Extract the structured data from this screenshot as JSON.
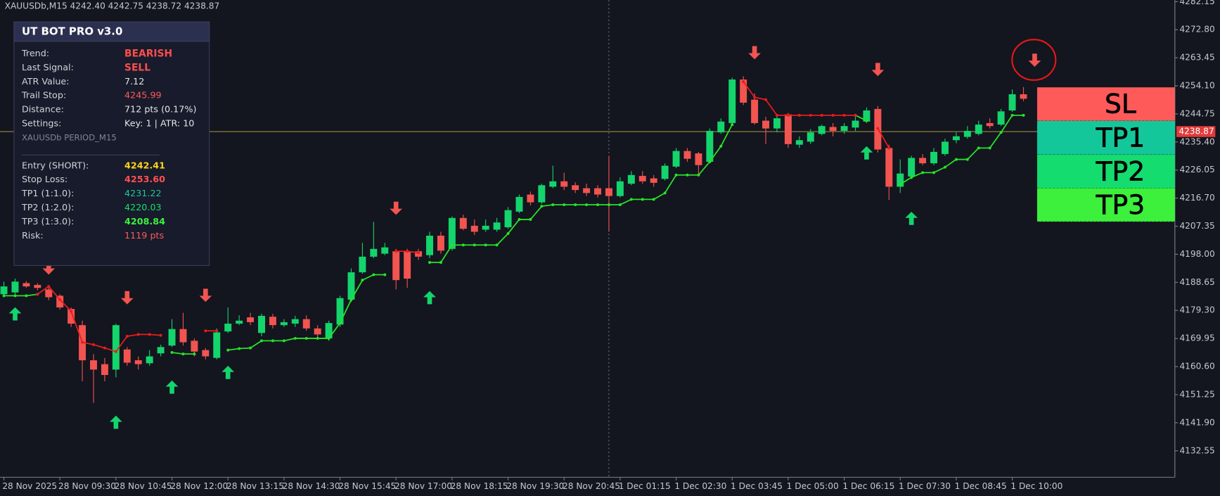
{
  "chart_data": {
    "type": "candlestick",
    "symbol_header": "XAUUSDb,M15  4242.40 4242.75 4238.72 4238.87",
    "categories": [
      "28 Nov 2025",
      null,
      null,
      null,
      null,
      "28 Nov 09:30",
      null,
      null,
      null,
      null,
      "28 Nov 10:45",
      null,
      null,
      null,
      null,
      "28 Nov 12:00",
      null,
      null,
      null,
      null,
      "28 Nov 13:15",
      null,
      null,
      null,
      null,
      "28 Nov 14:30",
      null,
      null,
      null,
      null,
      "28 Nov 15:45",
      null,
      null,
      null,
      null,
      "28 Nov 17:00",
      null,
      null,
      null,
      null,
      "28 Nov 18:15",
      null,
      null,
      null,
      null,
      "28 Nov 19:30",
      null,
      null,
      null,
      null,
      "28 Nov 20:45",
      null,
      null,
      null,
      null,
      "1 Dec 01:15",
      null,
      null,
      null,
      null,
      "1 Dec 02:30",
      null,
      null,
      null,
      null,
      "1 Dec 03:45",
      null,
      null,
      null,
      null,
      "1 Dec 05:00",
      null,
      null,
      null,
      null,
      "1 Dec 06:15",
      null,
      null,
      null,
      null,
      "1 Dec 07:30",
      null,
      null,
      null,
      null,
      "1 Dec 08:45",
      null,
      null,
      null,
      null,
      "1 Dec 10:00",
      null
    ],
    "open": [
      4184.7,
      4185.3,
      4188.4,
      4187.8,
      4186.3,
      4184.2,
      4179.8,
      4174.4,
      4162.7,
      4161.4,
      4159.6,
      4166.3,
      4162.7,
      4161.7,
      4165.0,
      4167.6,
      4173.1,
      4169.2,
      4166.1,
      4163.5,
      4172.3,
      4174.9,
      4177.0,
      4171.8,
      4177.2,
      4174.4,
      4174.9,
      4176.4,
      4173.3,
      4170.0,
      4174.6,
      4182.9,
      4192.0,
      4197.2,
      4198.2,
      4199.0,
      4199.0,
      4199.0,
      4197.7,
      4204.2,
      4199.8,
      4210.1,
      4207.5,
      4206.2,
      4206.2,
      4207.0,
      4212.2,
      4217.9,
      4215.3,
      4220.5,
      4222.3,
      4221.0,
      4220.0,
      4220.0,
      4220.0,
      4217.4,
      4221.5,
      4224.1,
      4223.3,
      4223.1,
      4227.2,
      4232.4,
      4231.6,
      4228.8,
      4238.6,
      4241.7,
      4256.2,
      4249.5,
      4242.5,
      4239.9,
      4244.6,
      4234.5,
      4235.5,
      4238.1,
      4240.4,
      4239.1,
      4240.2,
      4242.2,
      4246.4,
      4233.4,
      4220.5,
      4223.9,
      4230.1,
      4228.3,
      4231.4,
      4236.0,
      4237.1,
      4238.1,
      4241.7,
      4241.2,
      4245.9,
      4251.3
    ],
    "high": [
      4188.9,
      4189.9,
      4189.1,
      4188.4,
      4187.3,
      4184.7,
      4180.3,
      4175.9,
      4164.8,
      4163.5,
      4174.9,
      4167.1,
      4164.0,
      4166.1,
      4167.9,
      4176.4,
      4178.5,
      4170.0,
      4166.8,
      4173.3,
      4180.3,
      4177.7,
      4178.5,
      4178.2,
      4178.2,
      4176.4,
      4177.5,
      4177.7,
      4174.4,
      4175.9,
      4184.2,
      4193.3,
      4201.8,
      4208.8,
      4201.8,
      4199.8,
      4199.8,
      4199.8,
      4205.5,
      4205.5,
      4210.6,
      4211.2,
      4209.6,
      4209.6,
      4210.1,
      4213.7,
      4217.9,
      4218.9,
      4221.5,
      4227.5,
      4225.2,
      4222.0,
      4221.5,
      4221.0,
      4230.8,
      4223.6,
      4225.7,
      4225.7,
      4224.4,
      4228.3,
      4233.4,
      4233.4,
      4232.1,
      4239.9,
      4243.3,
      4256.8,
      4257.3,
      4251.6,
      4243.8,
      4244.3,
      4245.1,
      4237.3,
      4239.7,
      4241.2,
      4241.7,
      4241.7,
      4243.8,
      4246.9,
      4247.4,
      4234.5,
      4229.6,
      4230.8,
      4231.4,
      4233.4,
      4236.5,
      4238.6,
      4240.7,
      4242.5,
      4243.3,
      4246.4,
      4252.9,
      4253.7
    ],
    "low": [
      4183.7,
      4184.7,
      4186.8,
      4186.0,
      4182.7,
      4179.6,
      4173.8,
      4155.7,
      4148.5,
      4155.7,
      4157.0,
      4160.9,
      4159.6,
      4160.9,
      4164.0,
      4167.1,
      4167.6,
      4164.0,
      4163.0,
      4163.0,
      4171.8,
      4174.4,
      4174.4,
      4170.7,
      4173.3,
      4173.8,
      4173.8,
      4172.5,
      4170.0,
      4169.2,
      4173.8,
      4182.1,
      4191.5,
      4196.7,
      4197.7,
      4186.3,
      4186.8,
      4196.1,
      4196.7,
      4198.2,
      4199.2,
      4206.0,
      4204.4,
      4205.5,
      4205.5,
      4206.5,
      4211.7,
      4214.3,
      4214.8,
      4220.0,
      4219.4,
      4218.4,
      4217.4,
      4216.9,
      4205.5,
      4216.9,
      4221.0,
      4221.5,
      4220.5,
      4222.6,
      4226.7,
      4228.8,
      4224.1,
      4228.3,
      4238.1,
      4241.2,
      4247.7,
      4241.2,
      4234.7,
      4238.6,
      4233.4,
      4233.4,
      4234.7,
      4237.6,
      4237.3,
      4238.1,
      4239.1,
      4241.7,
      4231.9,
      4216.1,
      4218.4,
      4223.1,
      4227.7,
      4227.7,
      4230.8,
      4235.0,
      4236.5,
      4237.6,
      4239.9,
      4240.7,
      4245.4,
      4249.0
    ],
    "close": [
      4187.3,
      4188.9,
      4187.3,
      4186.8,
      4183.7,
      4180.3,
      4174.9,
      4162.7,
      4159.6,
      4157.8,
      4174.4,
      4161.9,
      4161.4,
      4164.0,
      4167.1,
      4173.1,
      4168.7,
      4165.6,
      4164.0,
      4172.0,
      4174.9,
      4175.9,
      4175.4,
      4177.5,
      4174.4,
      4175.4,
      4176.4,
      4173.3,
      4171.3,
      4175.1,
      4183.4,
      4192.0,
      4197.2,
      4199.8,
      4200.3,
      4189.4,
      4189.9,
      4197.2,
      4204.2,
      4199.2,
      4210.1,
      4206.5,
      4205.5,
      4207.5,
      4208.6,
      4212.7,
      4217.1,
      4215.3,
      4221.0,
      4222.3,
      4220.5,
      4219.4,
      4218.4,
      4217.9,
      4217.4,
      4222.3,
      4224.4,
      4222.3,
      4221.8,
      4227.5,
      4232.4,
      4229.8,
      4227.7,
      4239.1,
      4242.2,
      4256.2,
      4248.5,
      4241.7,
      4239.9,
      4243.3,
      4234.7,
      4236.0,
      4238.6,
      4240.7,
      4239.1,
      4240.7,
      4242.5,
      4245.9,
      4232.9,
      4220.5,
      4224.9,
      4230.1,
      4228.3,
      4232.1,
      4235.5,
      4237.3,
      4239.1,
      4241.2,
      4240.7,
      4245.6,
      4251.3,
      4249.8
    ],
    "up_color": "#14d46c",
    "down_color": "#f25450",
    "trail_bull": {
      "color": "#27e327",
      "values": [
        4184.2,
        4184.2,
        4184.2,
        4184.7,
        null,
        null,
        null,
        null,
        null,
        null,
        null,
        null,
        null,
        null,
        null,
        4165.3,
        4164.8,
        4164.8,
        null,
        null,
        4166.1,
        4166.6,
        4166.8,
        4169.2,
        4169.2,
        4169.2,
        4170.0,
        4170.0,
        4170.0,
        4170.0,
        4175.1,
        4182.9,
        4189.4,
        4191.2,
        4191.2,
        null,
        null,
        null,
        4195.3,
        4195.3,
        4201.1,
        4201.1,
        4201.1,
        4201.1,
        4201.1,
        4204.9,
        4209.6,
        4209.6,
        4214.0,
        4214.5,
        4214.5,
        4214.5,
        4214.5,
        4214.5,
        4214.5,
        4214.5,
        4216.3,
        4216.3,
        4216.3,
        4218.4,
        4224.4,
        4224.4,
        4224.4,
        4228.8,
        4234.0,
        4241.2,
        null,
        null,
        null,
        null,
        null,
        null,
        null,
        null,
        null,
        null,
        4244.3,
        4242.5,
        null,
        null,
        4221.3,
        4223.6,
        4225.2,
        4225.2,
        4227.0,
        4229.6,
        4229.6,
        4233.4,
        4233.4,
        4238.6,
        4244.3,
        4244.3
      ]
    },
    "trail_bear": {
      "color": "#e81c1c",
      "values": [
        null,
        null,
        null,
        4184.7,
        4187.3,
        4182.9,
        4179.0,
        4168.7,
        4167.9,
        4166.8,
        4165.6,
        4170.7,
        4171.3,
        4171.3,
        4171.0,
        null,
        null,
        null,
        4172.5,
        4172.5,
        null,
        null,
        null,
        null,
        null,
        null,
        null,
        null,
        null,
        null,
        null,
        null,
        null,
        null,
        null,
        4199.0,
        4199.0,
        4198.5,
        null,
        null,
        null,
        null,
        null,
        null,
        null,
        null,
        null,
        null,
        null,
        null,
        null,
        null,
        null,
        null,
        null,
        null,
        null,
        null,
        null,
        null,
        null,
        null,
        null,
        null,
        null,
        null,
        4255.5,
        4250.3,
        4249.5,
        4244.3,
        4244.3,
        4244.3,
        4244.3,
        4244.3,
        4244.3,
        4244.3,
        4244.3,
        null,
        4239.9,
        4233.4,
        null,
        null,
        null,
        null,
        null,
        null,
        null,
        null,
        null,
        null,
        null,
        null
      ]
    },
    "buy_signals": {
      "color": "#14d46c",
      "index": [
        1,
        10,
        15,
        20,
        38,
        77,
        81
      ],
      "price": [
        4178.3,
        4142.2,
        4153.9,
        4158.8,
        4183.7,
        4231.9,
        4210.1
      ]
    },
    "sell_signals": {
      "color": "#f25450",
      "index": [
        4,
        11,
        18,
        35,
        67,
        78,
        92
      ],
      "price": [
        4193.3,
        4183.4,
        4184.2,
        4213.2,
        4265.0,
        4259.4,
        4262.5
      ]
    },
    "ylim": [
      4123.74,
      4282.67
    ],
    "yticks": [
      4282.15,
      {
        "value": 4272.8,
        "label": "4272.80"
      },
      4263.45,
      {
        "value": 4254.1,
        "label": "4254.10"
      },
      4244.75,
      {
        "value": 4235.4,
        "label": "4235.40"
      },
      4226.05,
      {
        "value": 4216.7,
        "label": "4216.70"
      },
      4207.35,
      {
        "value": 4198,
        "label": "4198.00"
      },
      4188.65,
      {
        "value": 4179.3,
        "label": "4179.30"
      },
      4169.95,
      {
        "value": 4160.6,
        "label": "4160.60"
      },
      4151.25,
      {
        "value": 4141.9,
        "label": "4141.90"
      },
      4132.55
    ],
    "current_price": {
      "value": 4238.87,
      "label": "4238.87"
    },
    "crosshair_index": 54,
    "level_labels": [
      "SL",
      "TP1",
      "TP2",
      "TP3"
    ],
    "level_zone_colors": [
      "#ff5a5a",
      "#13c79a",
      "#14dc6e",
      "#3cf03c"
    ]
  },
  "panel": {
    "title": "UT BOT PRO  v3.0",
    "status_rows": [
      {
        "label": "Trend:",
        "value": "BEARISH",
        "color": "#ff4d4d",
        "bold": true
      },
      {
        "label": "Last Signal:",
        "value": "SELL",
        "color": "#ff4d4d",
        "bold": true
      },
      {
        "label": "ATR Value:",
        "value": "7.12",
        "color": "#e6e6e6",
        "bold": false
      },
      {
        "label": "Trail Stop:",
        "value": "4245.99",
        "color": "#ff5a5a",
        "bold": false
      },
      {
        "label": "Distance:",
        "value": "712 pts (0.17%)",
        "color": "#e6e6e6",
        "bold": false
      },
      {
        "label": "Settings:",
        "value": "Key: 1  |  ATR: 10",
        "color": "#e6e6e6",
        "bold": false
      }
    ],
    "symbol_note": "XAUUSDb  PERIOD_M15",
    "trade_rows": [
      {
        "label": "Entry (SHORT):",
        "value": 4242.41,
        "value_label": "4242.41",
        "color": "#ffd21a",
        "bold": true
      },
      {
        "label": "Stop Loss:",
        "value": 4253.6,
        "value_label": "4253.60",
        "color": "#ff5050",
        "bold": true
      },
      {
        "label": "TP1 (1:1.0):",
        "value": 4231.22,
        "value_label": "4231.22",
        "color": "#1fc79b",
        "bold": false
      },
      {
        "label": "TP2 (1:2.0):",
        "value": 4220.03,
        "value_label": "4220.03",
        "color": "#19dd6c",
        "bold": false
      },
      {
        "label": "TP3 (1:3.0):",
        "value": 4208.84,
        "value_label": "4208.84",
        "color": "#3cf23c",
        "bold": true
      }
    ],
    "risk": {
      "label": "Risk:",
      "value": "1119 pts",
      "color": "#ff5a5a"
    }
  }
}
